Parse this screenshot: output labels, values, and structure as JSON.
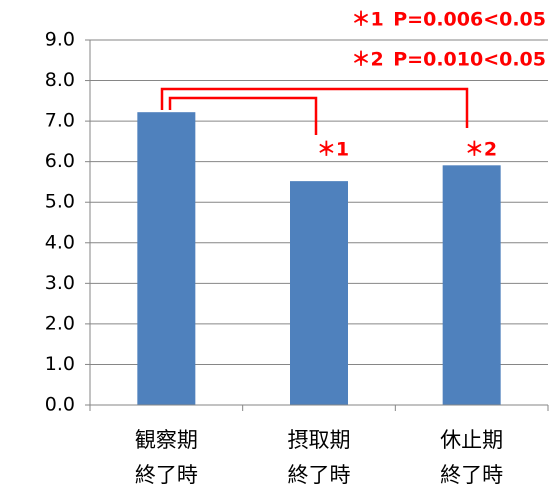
{
  "chart_data": {
    "type": "bar",
    "categories": [
      [
        "観察期",
        "終了時"
      ],
      [
        "摂取期",
        "終了時"
      ],
      [
        "休止期",
        "終了時"
      ]
    ],
    "values": [
      7.22,
      5.52,
      5.91
    ],
    "color": "#4f81bd",
    "ylim": [
      0,
      9
    ],
    "yticks": [
      {
        "value": 0,
        "label": "0.0"
      },
      {
        "value": 1,
        "label": "1.0"
      },
      {
        "value": 2,
        "label": "2.0"
      },
      {
        "value": 3,
        "label": "3.0"
      },
      {
        "value": 4,
        "label": "4.0"
      },
      {
        "value": 5,
        "label": "5.0"
      },
      {
        "value": 6,
        "label": "6.0"
      },
      {
        "value": 7,
        "label": "7.0"
      },
      {
        "value": 8,
        "label": "8.0"
      },
      {
        "value": 9,
        "label": "9.0"
      }
    ],
    "grid": true,
    "annotations": [
      "＊1 P=0.006<0.05",
      "＊2 P=0.010<0.05",
      "＊1",
      "＊2"
    ]
  }
}
